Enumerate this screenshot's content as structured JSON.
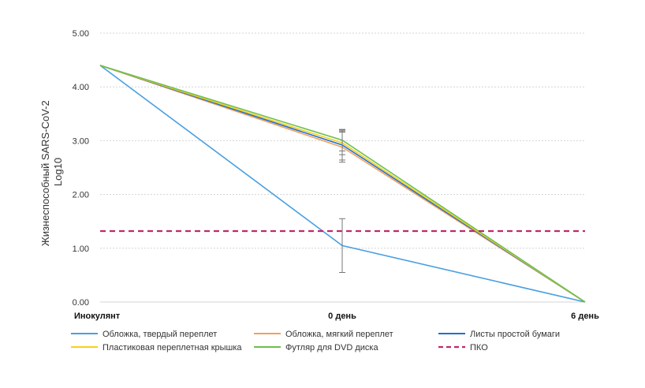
{
  "chart_data": {
    "type": "line",
    "ylabel_line1": "Жизнеспособный  SARS-CoV-2",
    "ylabel_line2": "Log10",
    "categories": [
      "Инокулянт",
      "0 день",
      "6 день"
    ],
    "ylim": [
      0,
      5
    ],
    "yticks": [
      "0.00",
      "1.00",
      "2.00",
      "3.00",
      "4.00",
      "5.00"
    ],
    "grid": true,
    "legend_position": "bottom",
    "series": [
      {
        "name": "Обложка, твердый переплет",
        "values": [
          4.4,
          1.05,
          0.0
        ],
        "color": "#4a9fe0",
        "style": "solid",
        "error": [
          0,
          0.5,
          0
        ]
      },
      {
        "name": "Обложка, мягкий переплет",
        "values": [
          4.4,
          2.88,
          0.0
        ],
        "color": "#f0a060",
        "style": "solid",
        "error": [
          0,
          0.28,
          0
        ]
      },
      {
        "name": "Листы простой бумаги",
        "values": [
          4.4,
          2.92,
          0.0
        ],
        "color": "#1f6fd1",
        "style": "solid",
        "error": [
          0,
          0.28,
          0
        ]
      },
      {
        "name": "Пластиковая переплетная крышка",
        "values": [
          4.4,
          2.96,
          0.0
        ],
        "color": "#f5d020",
        "style": "solid",
        "error": [
          0,
          0.22,
          0
        ]
      },
      {
        "name": "Футляр для DVD диска",
        "values": [
          4.4,
          3.01,
          0.0
        ],
        "color": "#6cc04a",
        "style": "solid",
        "error": [
          0,
          0.2,
          0
        ]
      },
      {
        "name": "ПКО",
        "values": [
          1.32,
          1.32,
          1.32
        ],
        "color": "#c0286e",
        "style": "dashed",
        "error": [
          0,
          0,
          0
        ]
      }
    ]
  }
}
